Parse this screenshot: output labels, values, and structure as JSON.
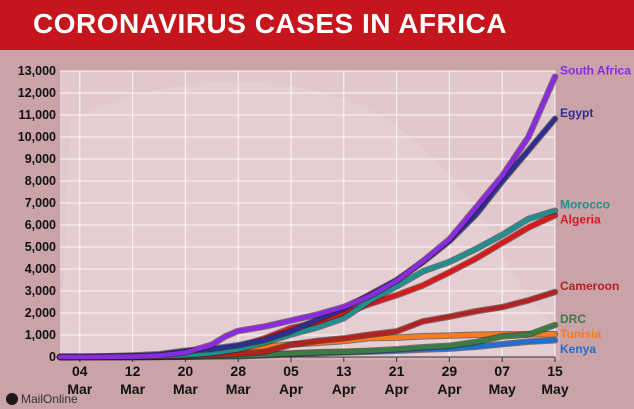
{
  "header": {
    "title": "CORONAVIRUS CASES IN AFRICA"
  },
  "credit": {
    "text": "MailOnline"
  },
  "colors": {
    "title_bar": "#c4161c",
    "map_background": "#c9a3a8",
    "plot_background": "#f3e8ea",
    "grid": "#ffffff"
  },
  "chart_data": {
    "type": "line",
    "title": "CORONAVIRUS CASES IN AFRICA",
    "xlabel": "",
    "ylabel": "",
    "ylim": [
      0,
      13000
    ],
    "yticks": [
      0,
      1000,
      2000,
      3000,
      4000,
      5000,
      6000,
      7000,
      8000,
      9000,
      10000,
      11000,
      12000,
      13000
    ],
    "ytick_labels": [
      "0",
      "1,000",
      "2,000",
      "3,000",
      "4,000",
      "5,000",
      "6,000",
      "7,000",
      "8,000",
      "9,000",
      "10,000",
      "11,000",
      "12,000",
      "13,000"
    ],
    "x_axis": "date",
    "xlim": [
      "2020-03-01",
      "2020-05-15"
    ],
    "xticks": [
      {
        "date": "2020-03-04",
        "day": "04",
        "month": "Mar"
      },
      {
        "date": "2020-03-12",
        "day": "12",
        "month": "Mar"
      },
      {
        "date": "2020-03-20",
        "day": "20",
        "month": "Mar"
      },
      {
        "date": "2020-03-28",
        "day": "28",
        "month": "Mar"
      },
      {
        "date": "2020-04-05",
        "day": "05",
        "month": "Apr"
      },
      {
        "date": "2020-04-13",
        "day": "13",
        "month": "Apr"
      },
      {
        "date": "2020-04-21",
        "day": "21",
        "month": "Apr"
      },
      {
        "date": "2020-04-29",
        "day": "29",
        "month": "Apr"
      },
      {
        "date": "2020-05-07",
        "day": "07",
        "month": "May"
      },
      {
        "date": "2020-05-15",
        "day": "15",
        "month": "May"
      }
    ],
    "grid": true,
    "legend": "labels at line ends (right)",
    "series": [
      {
        "name": "South Africa",
        "color": "#8a2be2",
        "points": [
          [
            "2020-03-01",
            0
          ],
          [
            "2020-03-05",
            1
          ],
          [
            "2020-03-12",
            17
          ],
          [
            "2020-03-16",
            62
          ],
          [
            "2020-03-20",
            202
          ],
          [
            "2020-03-24",
            554
          ],
          [
            "2020-03-26",
            927
          ],
          [
            "2020-03-28",
            1187
          ],
          [
            "2020-04-01",
            1380
          ],
          [
            "2020-04-05",
            1655
          ],
          [
            "2020-04-09",
            1934
          ],
          [
            "2020-04-13",
            2272
          ],
          [
            "2020-04-17",
            2783
          ],
          [
            "2020-04-21",
            3465
          ],
          [
            "2020-04-25",
            4361
          ],
          [
            "2020-04-29",
            5350
          ],
          [
            "2020-05-03",
            6783
          ],
          [
            "2020-05-07",
            8232
          ],
          [
            "2020-05-11",
            10015
          ],
          [
            "2020-05-15",
            12739
          ]
        ]
      },
      {
        "name": "Egypt",
        "color": "#2e2e8f",
        "points": [
          [
            "2020-03-01",
            2
          ],
          [
            "2020-03-06",
            15
          ],
          [
            "2020-03-12",
            67
          ],
          [
            "2020-03-16",
            126
          ],
          [
            "2020-03-20",
            285
          ],
          [
            "2020-03-24",
            366
          ],
          [
            "2020-03-28",
            536
          ],
          [
            "2020-04-01",
            779
          ],
          [
            "2020-04-05",
            1173
          ],
          [
            "2020-04-09",
            1699
          ],
          [
            "2020-04-13",
            2190
          ],
          [
            "2020-04-17",
            2844
          ],
          [
            "2020-04-21",
            3490
          ],
          [
            "2020-04-25",
            4319
          ],
          [
            "2020-04-29",
            5268
          ],
          [
            "2020-05-03",
            6465
          ],
          [
            "2020-05-07",
            7981
          ],
          [
            "2020-05-11",
            9400
          ],
          [
            "2020-05-15",
            10829
          ]
        ]
      },
      {
        "name": "Morocco",
        "color": "#1f8f8f",
        "points": [
          [
            "2020-03-01",
            0
          ],
          [
            "2020-03-04",
            1
          ],
          [
            "2020-03-12",
            6
          ],
          [
            "2020-03-16",
            29
          ],
          [
            "2020-03-20",
            79
          ],
          [
            "2020-03-24",
            170
          ],
          [
            "2020-03-28",
            345
          ],
          [
            "2020-04-01",
            654
          ],
          [
            "2020-04-05",
            1021
          ],
          [
            "2020-04-09",
            1346
          ],
          [
            "2020-04-13",
            1763
          ],
          [
            "2020-04-17",
            2564
          ],
          [
            "2020-04-21",
            3209
          ],
          [
            "2020-04-25",
            3897
          ],
          [
            "2020-04-29",
            4321
          ],
          [
            "2020-05-03",
            4903
          ],
          [
            "2020-05-07",
            5548
          ],
          [
            "2020-05-11",
            6281
          ],
          [
            "2020-05-15",
            6652
          ]
        ]
      },
      {
        "name": "Algeria",
        "color": "#d7191c",
        "points": [
          [
            "2020-03-01",
            1
          ],
          [
            "2020-03-06",
            17
          ],
          [
            "2020-03-12",
            24
          ],
          [
            "2020-03-16",
            54
          ],
          [
            "2020-03-20",
            90
          ],
          [
            "2020-03-24",
            264
          ],
          [
            "2020-03-28",
            454
          ],
          [
            "2020-04-01",
            847
          ],
          [
            "2020-04-05",
            1320
          ],
          [
            "2020-04-09",
            1572
          ],
          [
            "2020-04-13",
            1983
          ],
          [
            "2020-04-17",
            2418
          ],
          [
            "2020-04-21",
            2811
          ],
          [
            "2020-04-25",
            3256
          ],
          [
            "2020-04-29",
            3848
          ],
          [
            "2020-05-03",
            4474
          ],
          [
            "2020-05-07",
            5182
          ],
          [
            "2020-05-11",
            5891
          ],
          [
            "2020-05-15",
            6442
          ]
        ]
      },
      {
        "name": "Cameroon",
        "color": "#b22222",
        "points": [
          [
            "2020-03-01",
            0
          ],
          [
            "2020-03-06",
            1
          ],
          [
            "2020-03-12",
            2
          ],
          [
            "2020-03-16",
            10
          ],
          [
            "2020-03-20",
            40
          ],
          [
            "2020-03-24",
            72
          ],
          [
            "2020-03-28",
            139
          ],
          [
            "2020-04-01",
            233
          ],
          [
            "2020-04-05",
            555
          ],
          [
            "2020-04-09",
            730
          ],
          [
            "2020-04-13",
            848
          ],
          [
            "2020-04-17",
            1017
          ],
          [
            "2020-04-21",
            1163
          ],
          [
            "2020-04-25",
            1621
          ],
          [
            "2020-04-29",
            1832
          ],
          [
            "2020-05-03",
            2077
          ],
          [
            "2020-05-07",
            2267
          ],
          [
            "2020-05-11",
            2579
          ],
          [
            "2020-05-15",
            2954
          ]
        ]
      },
      {
        "name": "DRC",
        "color": "#3a7d44",
        "points": [
          [
            "2020-03-01",
            0
          ],
          [
            "2020-03-10",
            1
          ],
          [
            "2020-03-16",
            3
          ],
          [
            "2020-03-20",
            18
          ],
          [
            "2020-03-24",
            45
          ],
          [
            "2020-03-28",
            65
          ],
          [
            "2020-04-01",
            109
          ],
          [
            "2020-04-05",
            161
          ],
          [
            "2020-04-09",
            215
          ],
          [
            "2020-04-13",
            241
          ],
          [
            "2020-04-17",
            287
          ],
          [
            "2020-04-21",
            350
          ],
          [
            "2020-04-25",
            442
          ],
          [
            "2020-04-29",
            508
          ],
          [
            "2020-05-03",
            682
          ],
          [
            "2020-05-07",
            937
          ],
          [
            "2020-05-11",
            1024
          ],
          [
            "2020-05-15",
            1455
          ]
        ]
      },
      {
        "name": "Tunisia",
        "color": "#f47d20",
        "points": [
          [
            "2020-03-01",
            0
          ],
          [
            "2020-03-03",
            1
          ],
          [
            "2020-03-12",
            16
          ],
          [
            "2020-03-16",
            20
          ],
          [
            "2020-03-20",
            54
          ],
          [
            "2020-03-24",
            114
          ],
          [
            "2020-03-28",
            227
          ],
          [
            "2020-04-01",
            455
          ],
          [
            "2020-04-05",
            574
          ],
          [
            "2020-04-09",
            643
          ],
          [
            "2020-04-13",
            726
          ],
          [
            "2020-04-17",
            864
          ],
          [
            "2020-04-21",
            884
          ],
          [
            "2020-04-25",
            939
          ],
          [
            "2020-04-29",
            975
          ],
          [
            "2020-05-03",
            1013
          ],
          [
            "2020-05-07",
            1025
          ],
          [
            "2020-05-11",
            1032
          ],
          [
            "2020-05-15",
            1035
          ]
        ]
      },
      {
        "name": "Kenya",
        "color": "#1f6fd1",
        "points": [
          [
            "2020-03-01",
            0
          ],
          [
            "2020-03-13",
            1
          ],
          [
            "2020-03-16",
            3
          ],
          [
            "2020-03-20",
            7
          ],
          [
            "2020-03-24",
            25
          ],
          [
            "2020-03-28",
            38
          ],
          [
            "2020-04-01",
            81
          ],
          [
            "2020-04-05",
            142
          ],
          [
            "2020-04-09",
            179
          ],
          [
            "2020-04-13",
            208
          ],
          [
            "2020-04-17",
            246
          ],
          [
            "2020-04-21",
            281
          ],
          [
            "2020-04-25",
            343
          ],
          [
            "2020-04-29",
            384
          ],
          [
            "2020-05-03",
            465
          ],
          [
            "2020-05-07",
            582
          ],
          [
            "2020-05-11",
            700
          ],
          [
            "2020-05-15",
            758
          ]
        ]
      }
    ]
  }
}
